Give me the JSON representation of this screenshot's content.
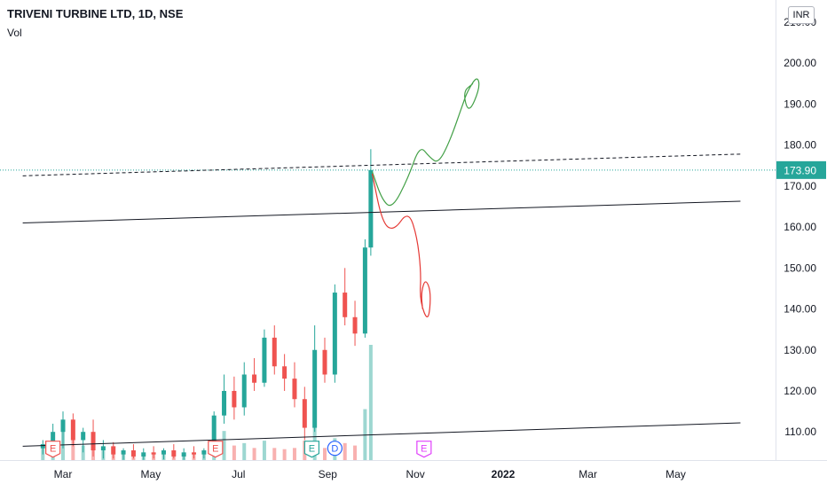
{
  "header": {
    "title": "TRIVENI TURBINE LTD, 1D, NSE",
    "vol_label": "Vol",
    "currency": "INR"
  },
  "price_axis": {
    "ticks": [
      {
        "value": 210,
        "label": "210.00"
      },
      {
        "value": 200,
        "label": "200.00"
      },
      {
        "value": 190,
        "label": "190.00"
      },
      {
        "value": 180,
        "label": "180.00"
      },
      {
        "value": 170,
        "label": "170.00"
      },
      {
        "value": 160,
        "label": "160.00"
      },
      {
        "value": 150,
        "label": "150.00"
      },
      {
        "value": 140,
        "label": "140.00"
      },
      {
        "value": 130,
        "label": "130.00"
      },
      {
        "value": 120,
        "label": "120.00"
      },
      {
        "value": 110,
        "label": "110.00"
      }
    ],
    "last_price": {
      "value": 173.9,
      "label": "173.90",
      "color": "#26a69a"
    }
  },
  "time_axis": {
    "ticks": [
      {
        "date": "2021-03-01",
        "label": "Mar",
        "bold": false
      },
      {
        "date": "2021-05-01",
        "label": "May",
        "bold": false
      },
      {
        "date": "2021-07-01",
        "label": "Jul",
        "bold": false
      },
      {
        "date": "2021-09-01",
        "label": "Sep",
        "bold": false
      },
      {
        "date": "2021-11-01",
        "label": "Nov",
        "bold": false
      },
      {
        "date": "2022-01-01",
        "label": "2022",
        "bold": true
      },
      {
        "date": "2022-03-01",
        "label": "Mar",
        "bold": false
      },
      {
        "date": "2022-05-01",
        "label": "May",
        "bold": false
      }
    ]
  },
  "colors": {
    "up": "#26a69a",
    "down": "#ef5350",
    "trend_green": "#43a047",
    "trend_red": "#e53935",
    "line": "#131722"
  },
  "chart_data": {
    "type": "candlestick",
    "title": "TRIVENI TURBINE LTD, 1D, NSE",
    "xlabel": "",
    "ylabel": "",
    "currency": "INR",
    "ylim": [
      103,
      213
    ],
    "xlim": [
      "2021-02-01",
      "2022-06-15"
    ],
    "grid": false,
    "last_price": 173.9,
    "series": [
      {
        "date": "2021-02-15",
        "open": 106.0,
        "high": 108.0,
        "low": 104.5,
        "close": 107.0
      },
      {
        "date": "2021-02-22",
        "open": 107.0,
        "high": 112.0,
        "low": 105.5,
        "close": 110.0
      },
      {
        "date": "2021-03-01",
        "open": 110.0,
        "high": 115.0,
        "low": 106.0,
        "close": 113.0
      },
      {
        "date": "2021-03-08",
        "open": 113.0,
        "high": 114.5,
        "low": 106.5,
        "close": 108.0
      },
      {
        "date": "2021-03-15",
        "open": 108.0,
        "high": 111.0,
        "low": 105.0,
        "close": 110.0
      },
      {
        "date": "2021-03-22",
        "open": 110.0,
        "high": 113.0,
        "low": 104.0,
        "close": 105.5
      },
      {
        "date": "2021-03-29",
        "open": 105.5,
        "high": 108.0,
        "low": 103.5,
        "close": 106.5
      },
      {
        "date": "2021-04-05",
        "open": 106.5,
        "high": 107.5,
        "low": 103.5,
        "close": 104.5
      },
      {
        "date": "2021-04-12",
        "open": 104.5,
        "high": 106.0,
        "low": 103.2,
        "close": 105.5
      },
      {
        "date": "2021-04-19",
        "open": 105.5,
        "high": 107.0,
        "low": 103.5,
        "close": 104.0
      },
      {
        "date": "2021-04-26",
        "open": 104.0,
        "high": 106.0,
        "low": 103.2,
        "close": 105.0
      },
      {
        "date": "2021-05-03",
        "open": 105.0,
        "high": 106.5,
        "low": 103.5,
        "close": 104.5
      },
      {
        "date": "2021-05-10",
        "open": 104.5,
        "high": 106.0,
        "low": 103.3,
        "close": 105.5
      },
      {
        "date": "2021-05-17",
        "open": 105.5,
        "high": 107.0,
        "low": 103.5,
        "close": 104.0
      },
      {
        "date": "2021-05-24",
        "open": 104.0,
        "high": 106.0,
        "low": 103.2,
        "close": 105.0
      },
      {
        "date": "2021-05-31",
        "open": 105.0,
        "high": 106.5,
        "low": 103.5,
        "close": 104.5
      },
      {
        "date": "2021-06-07",
        "open": 104.5,
        "high": 106.0,
        "low": 103.5,
        "close": 105.5
      },
      {
        "date": "2021-06-14",
        "open": 105.5,
        "high": 115.0,
        "low": 104.5,
        "close": 114.0
      },
      {
        "date": "2021-06-21",
        "open": 114.0,
        "high": 124.0,
        "low": 112.0,
        "close": 120.0
      },
      {
        "date": "2021-06-28",
        "open": 120.0,
        "high": 123.5,
        "low": 113.0,
        "close": 116.0
      },
      {
        "date": "2021-07-05",
        "open": 116.0,
        "high": 127.0,
        "low": 114.0,
        "close": 124.0
      },
      {
        "date": "2021-07-12",
        "open": 124.0,
        "high": 128.0,
        "low": 120.0,
        "close": 122.0
      },
      {
        "date": "2021-07-19",
        "open": 122.0,
        "high": 135.0,
        "low": 121.0,
        "close": 133.0
      },
      {
        "date": "2021-07-26",
        "open": 133.0,
        "high": 136.0,
        "low": 124.0,
        "close": 126.0
      },
      {
        "date": "2021-08-02",
        "open": 126.0,
        "high": 129.0,
        "low": 120.0,
        "close": 123.0
      },
      {
        "date": "2021-08-09",
        "open": 123.0,
        "high": 127.0,
        "low": 116.0,
        "close": 118.0
      },
      {
        "date": "2021-08-16",
        "open": 118.0,
        "high": 121.0,
        "low": 108.0,
        "close": 111.0
      },
      {
        "date": "2021-08-23",
        "open": 111.0,
        "high": 136.0,
        "low": 110.0,
        "close": 130.0
      },
      {
        "date": "2021-08-30",
        "open": 130.0,
        "high": 133.0,
        "low": 122.0,
        "close": 124.0
      },
      {
        "date": "2021-09-06",
        "open": 124.0,
        "high": 146.0,
        "low": 122.0,
        "close": 144.0
      },
      {
        "date": "2021-09-13",
        "open": 144.0,
        "high": 150.0,
        "low": 136.0,
        "close": 138.0
      },
      {
        "date": "2021-09-20",
        "open": 138.0,
        "high": 142.0,
        "low": 131.0,
        "close": 134.0
      },
      {
        "date": "2021-09-27",
        "open": 134.0,
        "high": 157.0,
        "low": 133.0,
        "close": 155.0
      },
      {
        "date": "2021-10-01",
        "open": 155.0,
        "high": 179.0,
        "low": 153.0,
        "close": 173.9
      }
    ],
    "volume": [
      {
        "date": "2021-02-15",
        "value": 1.0
      },
      {
        "date": "2021-02-22",
        "value": 1.5
      },
      {
        "date": "2021-03-01",
        "value": 2.4
      },
      {
        "date": "2021-03-08",
        "value": 1.8
      },
      {
        "date": "2021-03-15",
        "value": 1.2
      },
      {
        "date": "2021-03-22",
        "value": 1.4
      },
      {
        "date": "2021-03-29",
        "value": 0.8
      },
      {
        "date": "2021-04-05",
        "value": 0.6
      },
      {
        "date": "2021-04-12",
        "value": 0.6
      },
      {
        "date": "2021-04-19",
        "value": 0.5
      },
      {
        "date": "2021-04-26",
        "value": 0.5
      },
      {
        "date": "2021-05-03",
        "value": 0.5
      },
      {
        "date": "2021-05-10",
        "value": 0.6
      },
      {
        "date": "2021-05-17",
        "value": 0.5
      },
      {
        "date": "2021-05-24",
        "value": 0.5
      },
      {
        "date": "2021-05-31",
        "value": 0.5
      },
      {
        "date": "2021-06-07",
        "value": 0.6
      },
      {
        "date": "2021-06-14",
        "value": 1.6
      },
      {
        "date": "2021-06-21",
        "value": 2.4
      },
      {
        "date": "2021-06-28",
        "value": 1.2
      },
      {
        "date": "2021-07-05",
        "value": 1.4
      },
      {
        "date": "2021-07-12",
        "value": 1.0
      },
      {
        "date": "2021-07-19",
        "value": 1.6
      },
      {
        "date": "2021-07-26",
        "value": 1.0
      },
      {
        "date": "2021-08-02",
        "value": 0.9
      },
      {
        "date": "2021-08-09",
        "value": 1.0
      },
      {
        "date": "2021-08-16",
        "value": 1.6
      },
      {
        "date": "2021-08-23",
        "value": 3.8
      },
      {
        "date": "2021-08-30",
        "value": 1.0
      },
      {
        "date": "2021-09-06",
        "value": 1.8
      },
      {
        "date": "2021-09-13",
        "value": 1.4
      },
      {
        "date": "2021-09-20",
        "value": 1.2
      },
      {
        "date": "2021-09-27",
        "value": 4.2
      },
      {
        "date": "2021-10-01",
        "value": 9.5
      }
    ],
    "events": [
      {
        "date": "2021-02-22",
        "price": 106.0,
        "label": "E",
        "color": "#ef5350"
      },
      {
        "date": "2021-06-15",
        "price": 106.0,
        "label": "E",
        "color": "#ef5350"
      },
      {
        "date": "2021-08-21",
        "price": 106.0,
        "label": "E",
        "color": "#26a69a"
      },
      {
        "date": "2021-09-06",
        "price": 106.0,
        "label": "D",
        "color": "#2962ff"
      },
      {
        "date": "2021-11-07",
        "price": 106.0,
        "label": "E",
        "color": "#e040fb"
      }
    ],
    "trendlines": [
      {
        "name": "upper-dashed",
        "style": "dashed",
        "points": [
          [
            "2021-02-01",
            172.5
          ],
          [
            "2022-06-15",
            177.8
          ]
        ]
      },
      {
        "name": "middle-solid",
        "style": "solid",
        "points": [
          [
            "2021-02-01",
            161.0
          ],
          [
            "2022-06-15",
            166.3
          ]
        ]
      },
      {
        "name": "lower-solid",
        "style": "solid",
        "points": [
          [
            "2021-02-01",
            106.5
          ],
          [
            "2022-06-15",
            112.2
          ]
        ]
      }
    ],
    "drawings": [
      {
        "name": "bullish-path",
        "color": "#43a047",
        "points": [
          [
            "2021-10-02",
            173.5
          ],
          [
            "2021-10-09",
            166.5
          ],
          [
            "2021-10-16",
            164.5
          ],
          [
            "2021-10-27",
            172.0
          ],
          [
            "2021-11-04",
            180.0
          ],
          [
            "2021-11-11",
            177.0
          ],
          [
            "2021-11-17",
            175.5
          ],
          [
            "2021-11-25",
            181.0
          ],
          [
            "2021-12-04",
            190.0
          ],
          [
            "2021-12-07",
            193.0
          ],
          [
            "2021-12-14",
            197.0
          ],
          [
            "2021-12-16",
            194.0
          ],
          [
            "2021-12-08",
            187.5
          ],
          [
            "2021-12-04",
            193.0
          ],
          [
            "2021-12-11",
            195.0
          ]
        ]
      },
      {
        "name": "bearish-path",
        "color": "#e53935",
        "points": [
          [
            "2021-10-02",
            173.0
          ],
          [
            "2021-10-09",
            161.0
          ],
          [
            "2021-10-17",
            159.0
          ],
          [
            "2021-10-27",
            164.0
          ],
          [
            "2021-11-02",
            158.0
          ],
          [
            "2021-11-05",
            149.0
          ],
          [
            "2021-11-04",
            142.0
          ],
          [
            "2021-11-10",
            136.5
          ],
          [
            "2021-11-12",
            144.0
          ],
          [
            "2021-11-08",
            147.5
          ],
          [
            "2021-11-05",
            144.0
          ],
          [
            "2021-11-06",
            140.0
          ]
        ]
      }
    ]
  }
}
